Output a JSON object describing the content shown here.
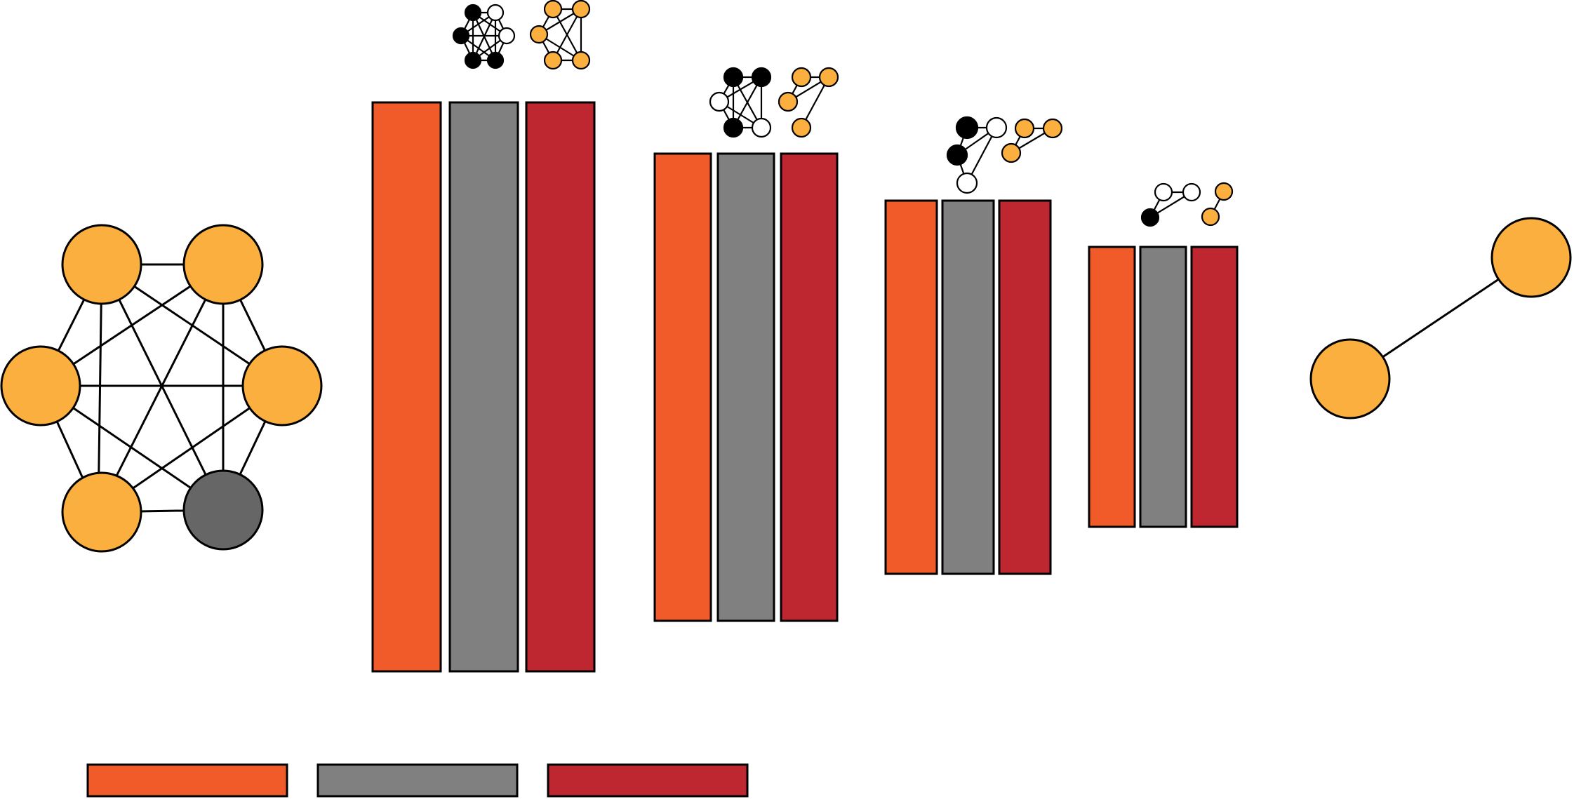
{
  "colors": {
    "node": "#FBAF3F",
    "node_removed": "#666666",
    "node_black": "#000000",
    "node_white": "#FFFFFF",
    "bar_orange": "#F15A29",
    "bar_gray": "#808080",
    "bar_red": "#BE2630"
  },
  "input_graph": {
    "node_count": 6,
    "removed_nodes": 1
  },
  "stages": [
    {
      "stage": 1,
      "bars": [
        "orange",
        "gray",
        "red"
      ]
    },
    {
      "stage": 2,
      "bars": [
        "orange",
        "gray",
        "red"
      ]
    },
    {
      "stage": 3,
      "bars": [
        "orange",
        "gray",
        "red"
      ]
    },
    {
      "stage": 4,
      "bars": [
        "orange",
        "gray",
        "red"
      ]
    }
  ],
  "output_graph": {
    "node_count": 2
  },
  "legend": {
    "items": [
      "orange",
      "gray",
      "red"
    ]
  }
}
